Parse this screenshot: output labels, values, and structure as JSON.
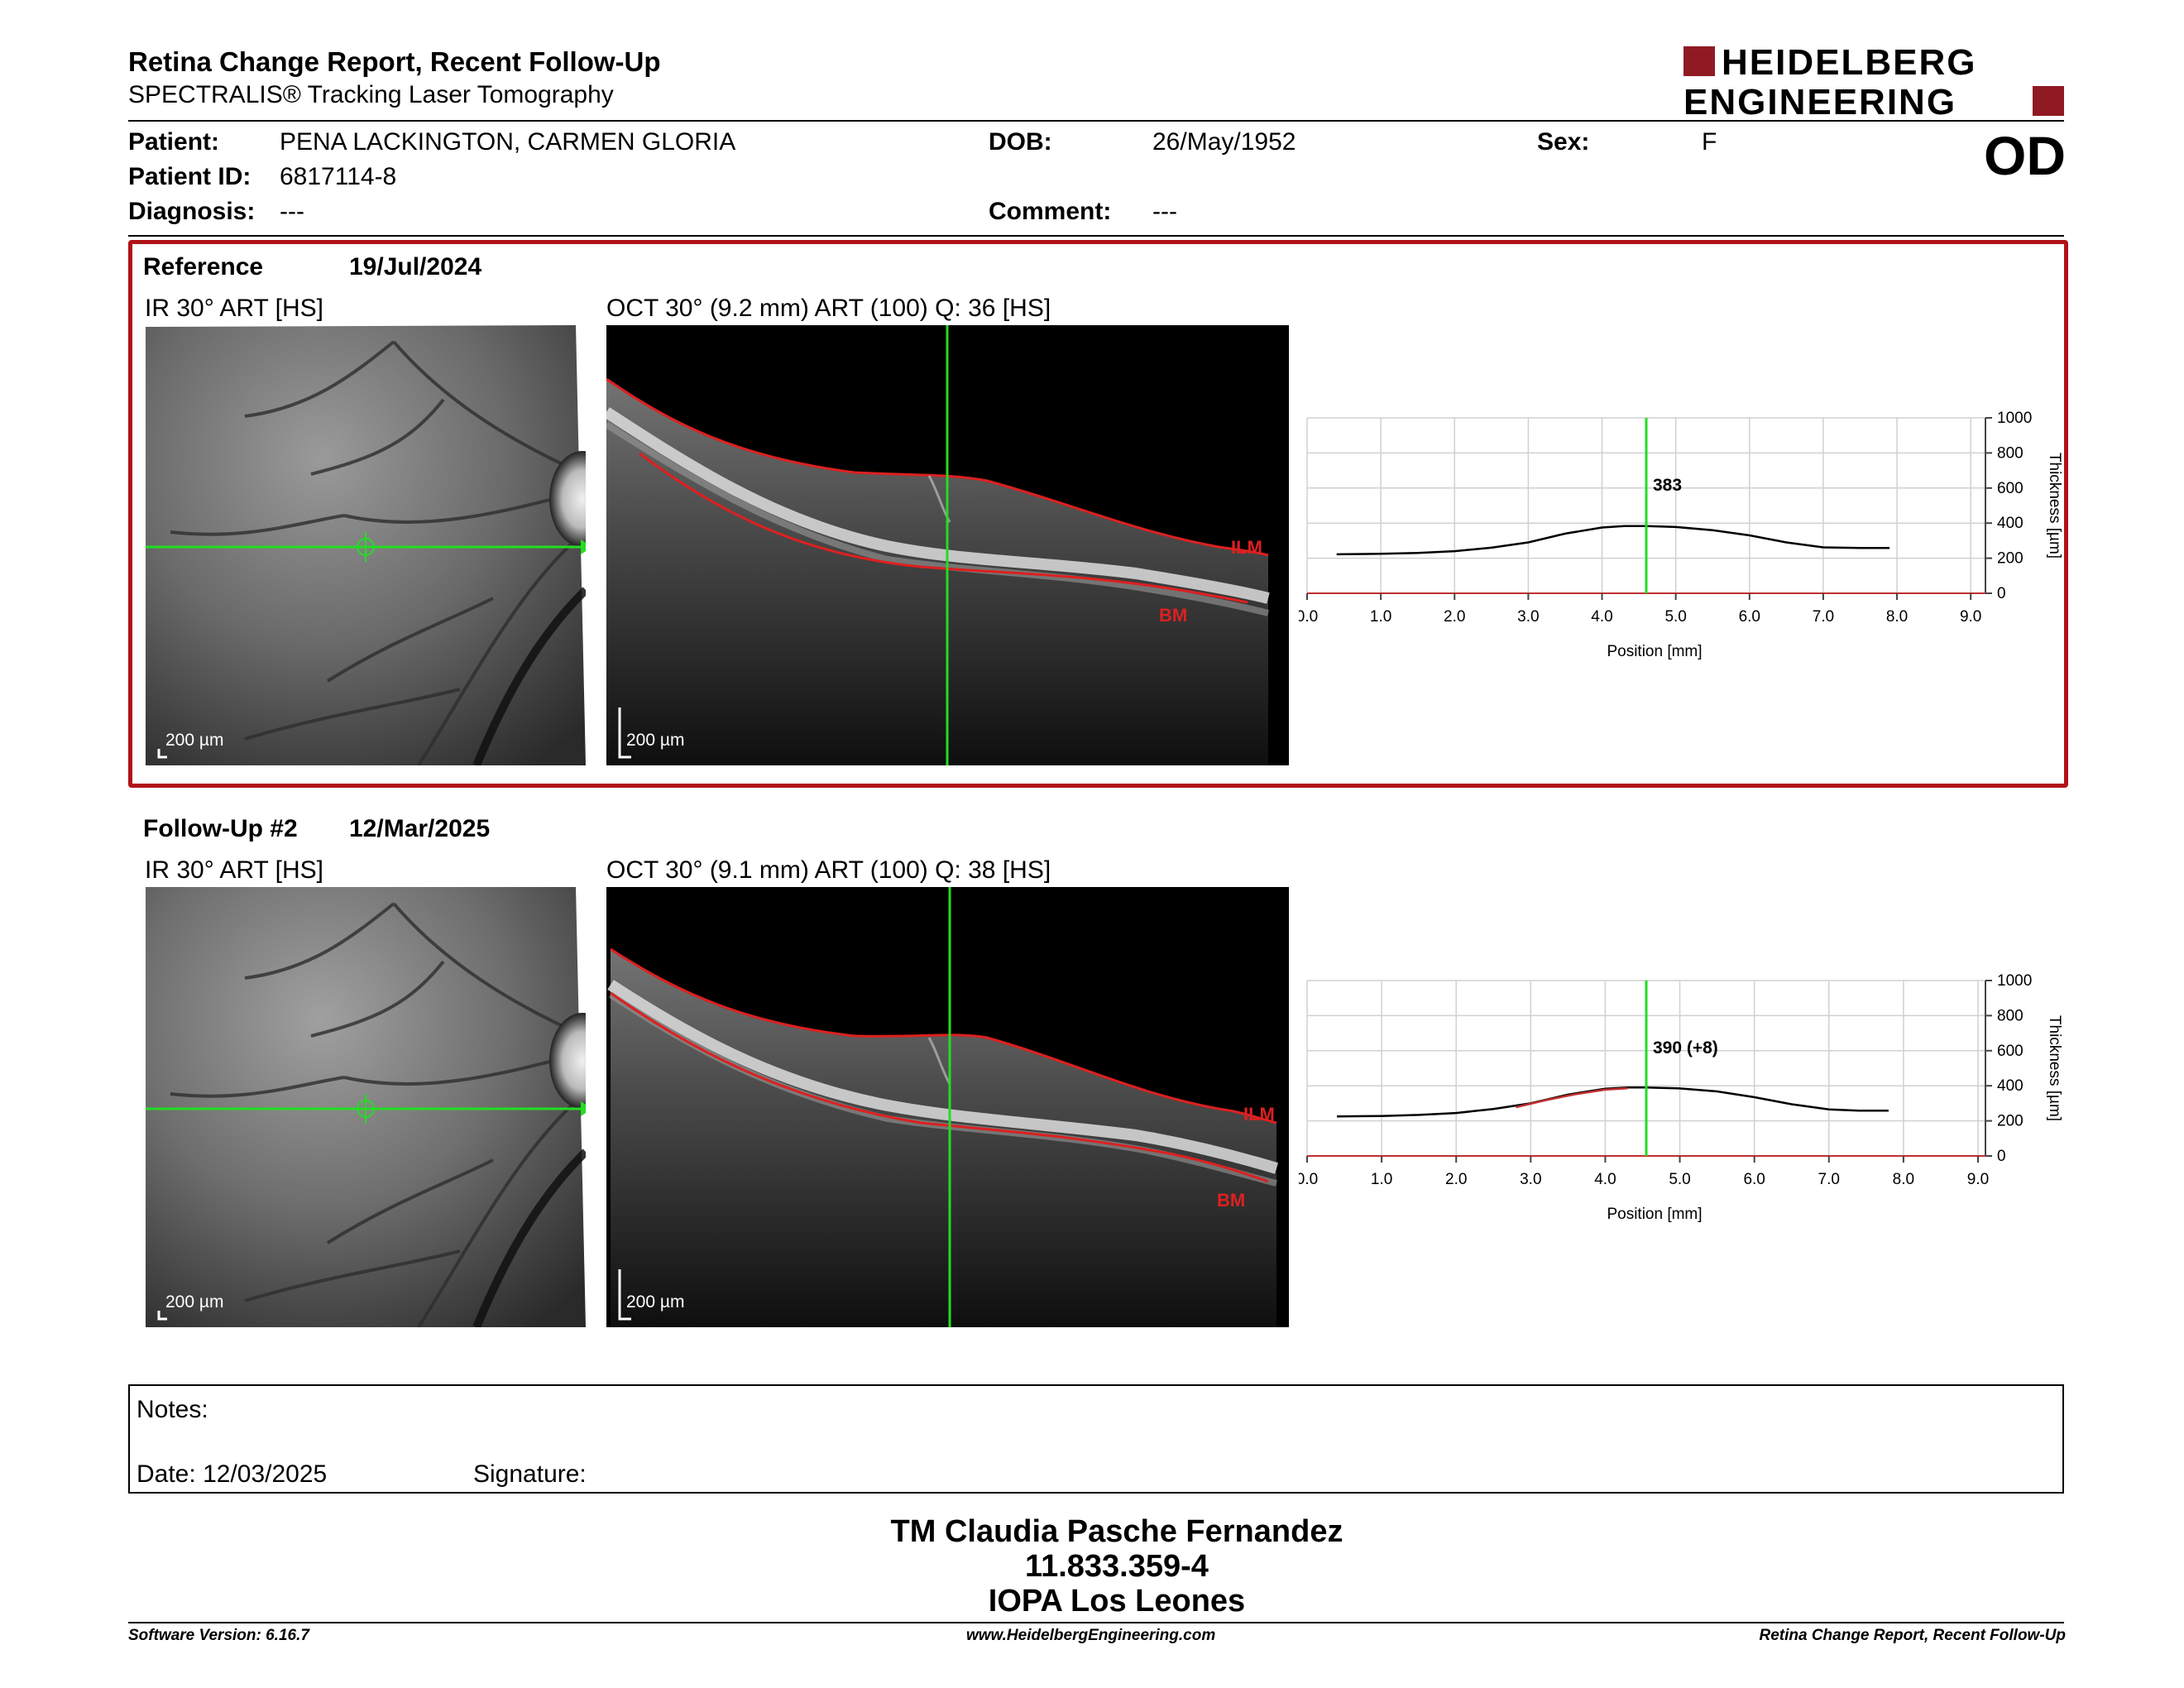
{
  "header": {
    "title": "Retina Change Report, Recent Follow-Up",
    "subtitle": "SPECTRALIS® Tracking Laser Tomography",
    "logo_line1": "HEIDELBERG",
    "logo_line2": "ENGINEERING",
    "eye": "OD"
  },
  "patient": {
    "name_label": "Patient:",
    "name": "PENA LACKINGTON, CARMEN GLORIA",
    "id_label": "Patient ID:",
    "id": "6817114-8",
    "diagnosis_label": "Diagnosis:",
    "diagnosis": "---",
    "dob_label": "DOB:",
    "dob": "26/May/1952",
    "comment_label": "Comment:",
    "comment": "---",
    "sex_label": "Sex:",
    "sex": "F"
  },
  "reference": {
    "label": "Reference",
    "date": "19/Jul/2024",
    "ir_title": "IR 30° ART [HS]",
    "oct_title": "OCT 30° (9.2 mm) ART (100) Q: 36 [HS]",
    "ir_scale": "200 µm",
    "oct_scale": "200 µm",
    "ilm_label": "ILM",
    "bm_label": "BM"
  },
  "followup": {
    "label": "Follow-Up #2",
    "date": "12/Mar/2025",
    "ir_title": "IR 30° ART [HS]",
    "oct_title": "OCT 30° (9.1 mm) ART (100) Q: 38 [HS]",
    "ir_scale": "200 µm",
    "oct_scale": "200 µm",
    "ilm_label": "ILM",
    "bm_label": "BM"
  },
  "chart_data": [
    {
      "type": "line",
      "xlabel": "Position [mm]",
      "ylabel": "Thickness [µm]",
      "xlim": [
        0,
        9.2
      ],
      "ylim": [
        0,
        1000
      ],
      "x_ticks": [
        "0.0",
        "1.0",
        "2.0",
        "3.0",
        "4.0",
        "5.0",
        "6.0",
        "7.0",
        "8.0",
        "9.0"
      ],
      "y_ticks": [
        "0",
        "200",
        "400",
        "600",
        "800",
        "1000"
      ],
      "cursor_x": 4.6,
      "cursor_label": "383",
      "series": [
        {
          "color": "#000000",
          "x": [
            0.4,
            1.0,
            1.5,
            2.0,
            2.5,
            3.0,
            3.5,
            4.0,
            4.3,
            4.6,
            5.0,
            5.5,
            6.0,
            6.5,
            7.0,
            7.5,
            7.9
          ],
          "values": [
            222,
            225,
            230,
            240,
            260,
            290,
            340,
            375,
            383,
            383,
            378,
            360,
            330,
            290,
            262,
            258,
            258
          ]
        }
      ]
    },
    {
      "type": "line",
      "xlabel": "Position [mm]",
      "ylabel": "Thickness [µm]",
      "xlim": [
        0,
        9.1
      ],
      "ylim": [
        0,
        1000
      ],
      "x_ticks": [
        "0.0",
        "1.0",
        "2.0",
        "3.0",
        "4.0",
        "5.0",
        "6.0",
        "7.0",
        "8.0",
        "9.0"
      ],
      "y_ticks": [
        "0",
        "200",
        "400",
        "600",
        "800",
        "1000"
      ],
      "cursor_x": 4.55,
      "cursor_label": "390 (+8)",
      "series": [
        {
          "color": "#000000",
          "x": [
            0.4,
            1.0,
            1.5,
            2.0,
            2.5,
            3.0,
            3.5,
            4.0,
            4.3,
            4.55,
            5.0,
            5.5,
            6.0,
            6.5,
            7.0,
            7.4,
            7.8
          ],
          "values": [
            225,
            228,
            234,
            245,
            268,
            300,
            350,
            383,
            390,
            390,
            385,
            368,
            335,
            295,
            265,
            258,
            258
          ]
        },
        {
          "color": "#c03030",
          "x": [
            2.8,
            3.2,
            3.6,
            4.0,
            4.3
          ],
          "values": [
            278,
            318,
            352,
            378,
            386
          ]
        }
      ]
    }
  ],
  "notes": {
    "label": "Notes:",
    "date_label": "Date:",
    "date": "12/03/2025",
    "signature_label": "Signature:"
  },
  "signature_block": {
    "line1": "TM Claudia Pasche Fernandez",
    "line2": "11.833.359-4",
    "line3": "IOPA Los Leones"
  },
  "footer": {
    "software": "Software Version: 6.16.7",
    "website": "www.HeidelbergEngineering.com",
    "report": "Retina Change Report, Recent Follow-Up"
  }
}
